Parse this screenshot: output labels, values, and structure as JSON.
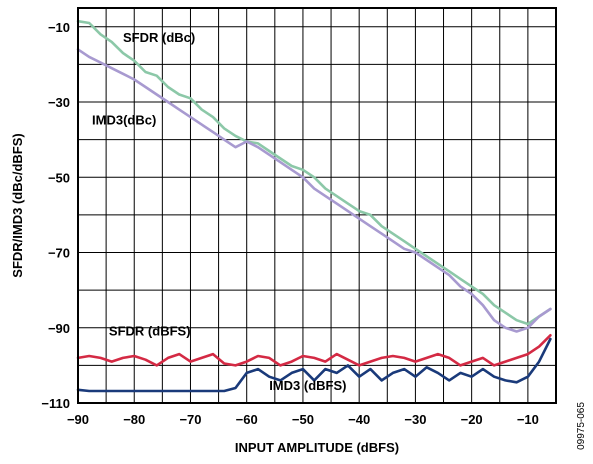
{
  "chart_data": {
    "type": "line",
    "xlabel": "INPUT AMPLITUDE (dBFS)",
    "ylabel": "SFDR/IMD3 (dBc/dBFS)",
    "xlim": [
      -90,
      -5
    ],
    "ylim": [
      -110,
      -5
    ],
    "xticks": [
      -90,
      -80,
      -70,
      -60,
      -50,
      -40,
      -30,
      -20,
      -10
    ],
    "yticks": [
      -10,
      -30,
      -50,
      -70,
      -90,
      -110
    ],
    "xtick_labels": [
      "−90",
      "−80",
      "−70",
      "−60",
      "−50",
      "−40",
      "−30",
      "−20",
      "−10"
    ],
    "ytick_labels": [
      "−10",
      "−30",
      "−50",
      "−70",
      "−90",
      "−110"
    ],
    "grid": true,
    "figure_id": "09975-065",
    "series": [
      {
        "name": "SFDR (dBc)",
        "color": "#8cc8a8",
        "x": [
          -90,
          -88,
          -86,
          -84,
          -82,
          -80,
          -78,
          -76,
          -74,
          -72,
          -70,
          -68,
          -66,
          -64,
          -62,
          -60,
          -58,
          -56,
          -54,
          -52,
          -50,
          -48,
          -46,
          -44,
          -42,
          -40,
          -38,
          -36,
          -34,
          -32,
          -30,
          -28,
          -26,
          -24,
          -22,
          -20,
          -18,
          -16,
          -14,
          -12,
          -10,
          -8,
          -6
        ],
        "values": [
          -8.5,
          -9,
          -12,
          -14,
          -17,
          -19,
          -22,
          -23,
          -26,
          -28,
          -29,
          -32,
          -34,
          -37,
          -39,
          -40.5,
          -41,
          -43,
          -45,
          -47,
          -48,
          -50,
          -53,
          -55,
          -57,
          -59,
          -60,
          -63,
          -65,
          -67,
          -69,
          -71,
          -73,
          -75,
          -77,
          -79,
          -81,
          -84,
          -86,
          -88,
          -89,
          -87,
          -85
        ]
      },
      {
        "name": "IMD3(dBc)",
        "color": "#a89ad0",
        "x": [
          -90,
          -88,
          -86,
          -84,
          -82,
          -80,
          -78,
          -76,
          -74,
          -72,
          -70,
          -68,
          -66,
          -64,
          -62,
          -60,
          -58,
          -56,
          -54,
          -52,
          -50,
          -48,
          -46,
          -44,
          -42,
          -40,
          -38,
          -36,
          -34,
          -32,
          -30,
          -28,
          -26,
          -24,
          -22,
          -20,
          -18,
          -16,
          -14,
          -12,
          -10,
          -8,
          -6
        ],
        "values": [
          -16,
          -18,
          -19.5,
          -21,
          -22.5,
          -24,
          -26,
          -28,
          -30,
          -32,
          -34,
          -36,
          -38,
          -40,
          -42,
          -40.5,
          -42,
          -44,
          -46,
          -48,
          -50,
          -53,
          -55,
          -57,
          -59,
          -61,
          -63,
          -65,
          -67,
          -69,
          -70,
          -72,
          -74,
          -76,
          -79,
          -81,
          -84,
          -88,
          -90,
          -91,
          -90,
          -87,
          -85
        ]
      },
      {
        "name": "SFDR (dBFS)",
        "color": "#d42a44",
        "x": [
          -90,
          -88,
          -86,
          -84,
          -82,
          -80,
          -78,
          -76,
          -74,
          -72,
          -70,
          -68,
          -66,
          -64,
          -62,
          -60,
          -58,
          -56,
          -54,
          -52,
          -50,
          -48,
          -46,
          -44,
          -42,
          -40,
          -38,
          -36,
          -34,
          -32,
          -30,
          -28,
          -26,
          -24,
          -22,
          -20,
          -18,
          -16,
          -14,
          -12,
          -10,
          -8,
          -6
        ],
        "values": [
          -98,
          -97.5,
          -98,
          -99,
          -98,
          -97.5,
          -98.5,
          -100,
          -98,
          -97,
          -99,
          -98,
          -97,
          -99.5,
          -100,
          -99,
          -97.5,
          -98,
          -100,
          -99,
          -97.5,
          -98,
          -99,
          -97,
          -98.5,
          -100,
          -99,
          -98,
          -97.5,
          -98,
          -99,
          -98,
          -97,
          -98,
          -100,
          -99,
          -98,
          -100,
          -99,
          -98,
          -97,
          -95,
          -92
        ]
      },
      {
        "name": "IMD3 (dBFS)",
        "color": "#1a3a7a",
        "x": [
          -90,
          -88,
          -86,
          -84,
          -82,
          -80,
          -78,
          -76,
          -74,
          -72,
          -70,
          -68,
          -66,
          -64,
          -62,
          -60,
          -58,
          -56,
          -54,
          -52,
          -50,
          -48,
          -46,
          -44,
          -42,
          -40,
          -38,
          -36,
          -34,
          -32,
          -30,
          -28,
          -26,
          -24,
          -22,
          -20,
          -18,
          -16,
          -14,
          -12,
          -10,
          -8,
          -6
        ],
        "values": [
          -106.5,
          -106.8,
          -106.8,
          -106.8,
          -106.8,
          -106.8,
          -106.8,
          -106.8,
          -106.8,
          -106.8,
          -106.8,
          -106.8,
          -106.8,
          -106.8,
          -106,
          -102,
          -101,
          -103,
          -104,
          -102,
          -101,
          -104,
          -101,
          -102,
          -100,
          -103,
          -101,
          -104,
          -102,
          -101,
          -103,
          -100.5,
          -102,
          -104,
          -102,
          -103,
          -101,
          -103,
          -104,
          -104.5,
          -103,
          -99,
          -93
        ]
      }
    ],
    "annotations": [
      {
        "text": "SFDR (dBc)",
        "x": -82,
        "y": -14
      },
      {
        "text": "IMD3(dBc)",
        "x": -87.5,
        "y": -36
      },
      {
        "text": "SFDR (dBFS)",
        "x": -84.5,
        "y": -92
      },
      {
        "text": "IMD3 (dBFS)",
        "x": -56,
        "y": -106.5
      }
    ]
  }
}
